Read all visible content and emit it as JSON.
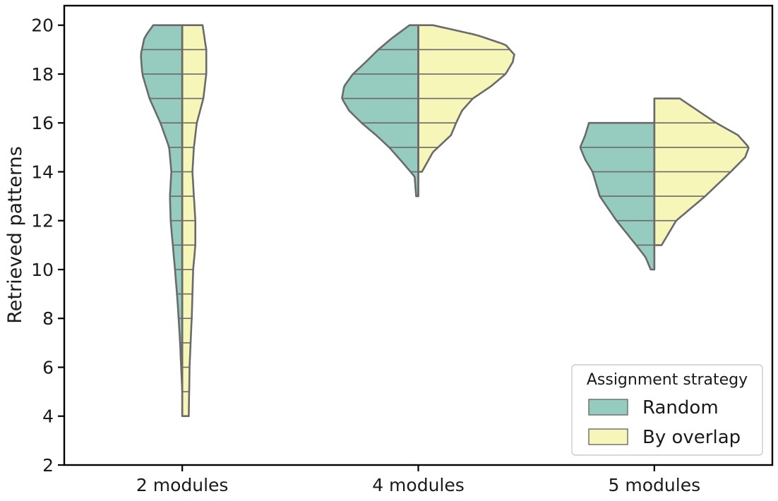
{
  "chart_data": {
    "type": "violin",
    "split": true,
    "inner": "stick",
    "ylabel": "Retrieved patterns",
    "xlabel": "",
    "ylim": [
      2,
      20.8
    ],
    "yticks": [
      2,
      4,
      6,
      8,
      10,
      12,
      14,
      16,
      18,
      20
    ],
    "categories": [
      "2 modules",
      "4 modules",
      "5 modules"
    ],
    "legend": {
      "title": "Assignment strategy",
      "position": "lower-right"
    },
    "series": [
      {
        "name": "Random",
        "color": "#96cbbf",
        "groups": [
          {
            "category": "2 modules",
            "range": [
              5,
              20
            ],
            "observed_values": [
              5,
              6,
              7,
              8,
              9,
              10,
              11,
              12,
              13,
              14,
              15,
              16,
              17,
              18,
              19,
              20
            ],
            "density_profile": [
              [
                5,
                0.0
              ],
              [
                7,
                0.03
              ],
              [
                8.5,
                0.06
              ],
              [
                10,
                0.1
              ],
              [
                11,
                0.13
              ],
              [
                12,
                0.16
              ],
              [
                13,
                0.17
              ],
              [
                14,
                0.15
              ],
              [
                15,
                0.18
              ],
              [
                16,
                0.3
              ],
              [
                17,
                0.45
              ],
              [
                18,
                0.55
              ],
              [
                18.8,
                0.57
              ],
              [
                19.5,
                0.52
              ],
              [
                20,
                0.4
              ]
            ]
          },
          {
            "category": "4 modules",
            "range": [
              13,
              20
            ],
            "observed_values": [
              13,
              14,
              15,
              16,
              17,
              18,
              19,
              20
            ],
            "density_profile": [
              [
                13,
                0.03
              ],
              [
                13.8,
                0.05
              ],
              [
                14.5,
                0.25
              ],
              [
                15,
                0.4
              ],
              [
                15.5,
                0.58
              ],
              [
                16,
                0.78
              ],
              [
                16.5,
                0.95
              ],
              [
                17,
                1.05
              ],
              [
                17.5,
                1.02
              ],
              [
                18,
                0.9
              ],
              [
                18.5,
                0.72
              ],
              [
                19,
                0.55
              ],
              [
                19.5,
                0.35
              ],
              [
                20,
                0.12
              ]
            ]
          },
          {
            "category": "5 modules",
            "range": [
              10,
              16
            ],
            "observed_values": [
              10,
              11,
              12,
              13,
              14,
              15,
              16
            ],
            "density_profile": [
              [
                10,
                0.05
              ],
              [
                10.5,
                0.12
              ],
              [
                11,
                0.25
              ],
              [
                12,
                0.52
              ],
              [
                13,
                0.75
              ],
              [
                14,
                0.85
              ],
              [
                14.5,
                0.95
              ],
              [
                15,
                1.02
              ],
              [
                15.5,
                0.95
              ],
              [
                16,
                0.9
              ]
            ]
          }
        ]
      },
      {
        "name": "By overlap",
        "color": "#f7f6b9",
        "groups": [
          {
            "category": "2 modules",
            "range": [
              4,
              20
            ],
            "observed_values": [
              4,
              5,
              6,
              7,
              8,
              9,
              10,
              11,
              12,
              13,
              14,
              15,
              16,
              17,
              18,
              19,
              20
            ],
            "density_profile": [
              [
                4,
                0.09
              ],
              [
                6,
                0.1
              ],
              [
                8,
                0.13
              ],
              [
                10,
                0.15
              ],
              [
                11,
                0.18
              ],
              [
                12,
                0.18
              ],
              [
                13,
                0.16
              ],
              [
                14,
                0.14
              ],
              [
                15,
                0.16
              ],
              [
                16,
                0.2
              ],
              [
                17,
                0.29
              ],
              [
                18,
                0.33
              ],
              [
                19,
                0.33
              ],
              [
                20,
                0.28
              ]
            ]
          },
          {
            "category": "4 modules",
            "range": [
              14,
              20
            ],
            "observed_values": [
              14,
              15,
              16,
              17,
              18,
              19,
              20
            ],
            "density_profile": [
              [
                14,
                0.05
              ],
              [
                14.8,
                0.2
              ],
              [
                15.5,
                0.45
              ],
              [
                16,
                0.52
              ],
              [
                16.5,
                0.6
              ],
              [
                17,
                0.75
              ],
              [
                17.5,
                1.0
              ],
              [
                18,
                1.2
              ],
              [
                18.5,
                1.3
              ],
              [
                18.8,
                1.32
              ],
              [
                19.2,
                1.2
              ],
              [
                19.6,
                0.8
              ],
              [
                20,
                0.2
              ]
            ]
          },
          {
            "category": "5 modules",
            "range": [
              11,
              17
            ],
            "observed_values": [
              11,
              12,
              13,
              14,
              15,
              16,
              17
            ],
            "density_profile": [
              [
                11,
                0.1
              ],
              [
                12,
                0.3
              ],
              [
                13,
                0.7
              ],
              [
                14,
                1.05
              ],
              [
                14.6,
                1.25
              ],
              [
                15,
                1.3
              ],
              [
                15.5,
                1.15
              ],
              [
                16,
                0.85
              ],
              [
                16.5,
                0.6
              ],
              [
                17,
                0.35
              ]
            ]
          }
        ]
      }
    ]
  }
}
